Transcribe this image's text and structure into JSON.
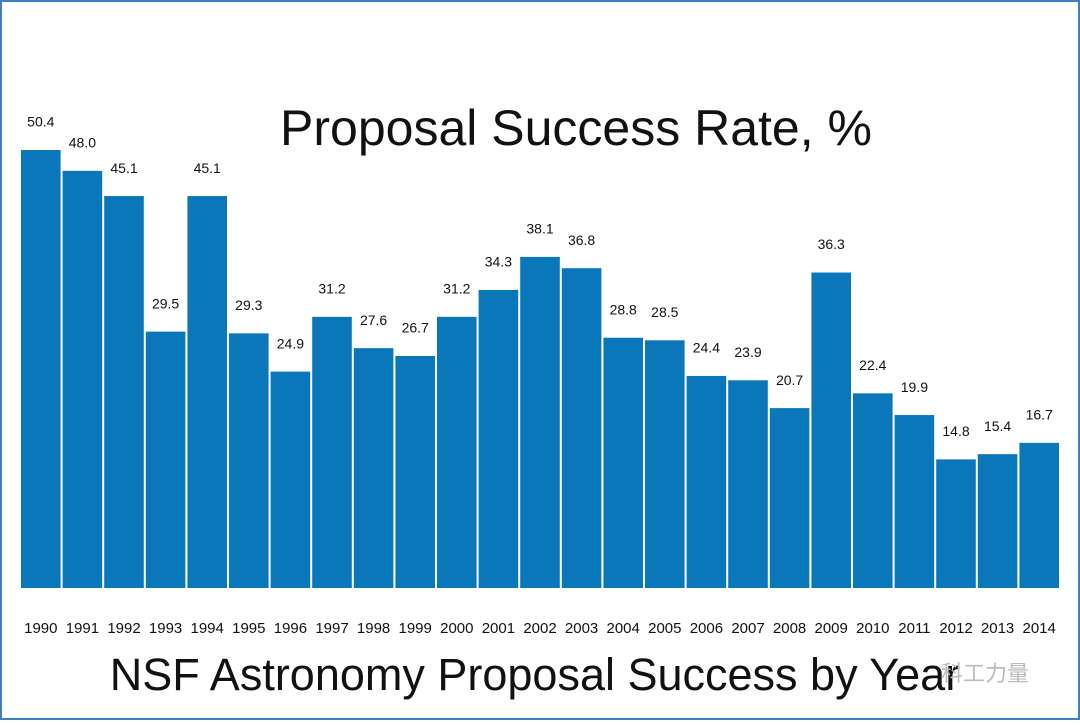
{
  "chart_data": {
    "type": "bar",
    "title": "Proposal Success Rate, %",
    "caption": "NSF Astronomy Proposal Success by Year",
    "watermark": "科工力量",
    "categories": [
      "1990",
      "1991",
      "1992",
      "1993",
      "1994",
      "1995",
      "1996",
      "1997",
      "1998",
      "1999",
      "2000",
      "2001",
      "2002",
      "2003",
      "2004",
      "2005",
      "2006",
      "2007",
      "2008",
      "2009",
      "2010",
      "2011",
      "2012",
      "2013",
      "2014"
    ],
    "values": [
      50.4,
      48.0,
      45.1,
      29.5,
      45.1,
      29.3,
      24.9,
      31.2,
      27.6,
      26.7,
      31.2,
      34.3,
      38.1,
      36.8,
      28.8,
      28.5,
      24.4,
      23.9,
      20.7,
      36.3,
      22.4,
      19.9,
      14.8,
      15.4,
      16.7
    ],
    "value_labels": [
      "50.4",
      "48.0",
      "45.1",
      "29.5",
      "45.1",
      "29.3",
      "24.9",
      "31.2",
      "27.6",
      "26.7",
      "31.2",
      "34.3",
      "38.1",
      "36.8",
      "28.8",
      "28.5",
      "24.4",
      "23.9",
      "20.7",
      "36.3",
      "22.4",
      "19.9",
      "14.8",
      "15.4",
      "16.7"
    ],
    "color": "#0a77ba"
  }
}
